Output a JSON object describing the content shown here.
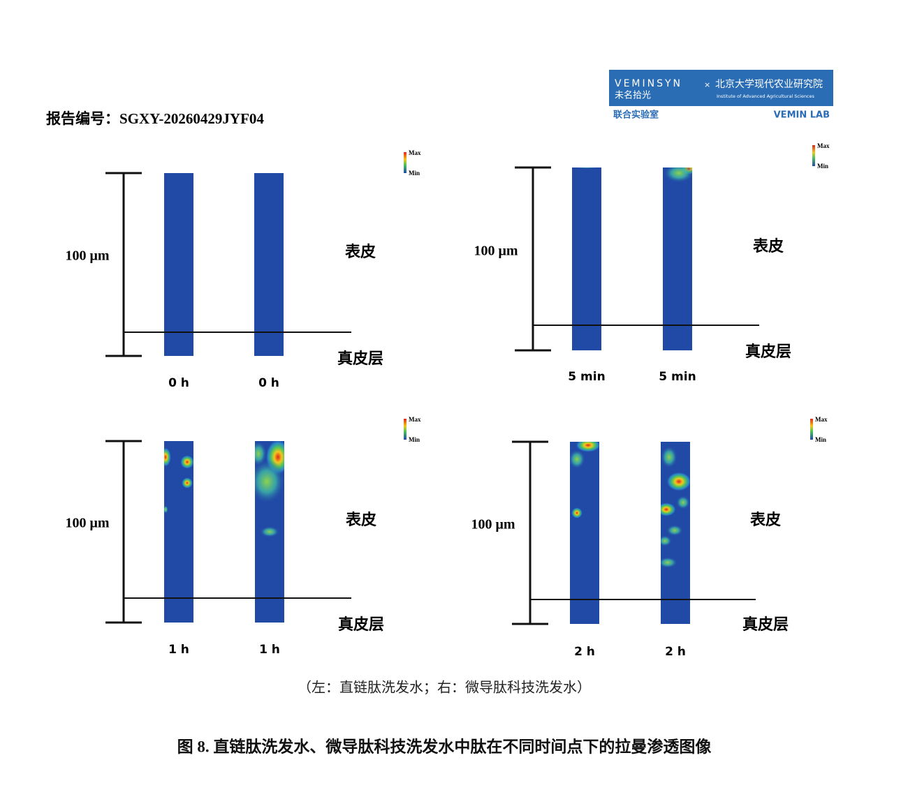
{
  "header": {
    "report_number": "报告编号：SGXY-20260429JYF04"
  },
  "logo": {
    "brand": "VEMINSYN",
    "brand_cn": "未名拾光",
    "separator": "×",
    "institute": "北京大学现代农业研究院",
    "institute_en": "Institute of Advanced Agricultural Sciences",
    "lab_cn": "联合实验室",
    "lab_en": "VEMIN LAB"
  },
  "panels": [
    {
      "scale_label": "100 μm",
      "upper_layer": "表皮",
      "lower_layer": "真皮层",
      "left_label": "0 h",
      "right_label": "0 h",
      "colorbar_max": "Max",
      "colorbar_min": "Min"
    },
    {
      "scale_label": "100 μm",
      "upper_layer": "表皮",
      "lower_layer": "真皮层",
      "left_label": "5 min",
      "right_label": "5 min",
      "colorbar_max": "Max",
      "colorbar_min": "Min"
    },
    {
      "scale_label": "100 μm",
      "upper_layer": "表皮",
      "lower_layer": "真皮层",
      "left_label": "1 h",
      "right_label": "1 h",
      "colorbar_max": "Max",
      "colorbar_min": "Min"
    },
    {
      "scale_label": "100 μm",
      "upper_layer": "表皮",
      "lower_layer": "真皮层",
      "left_label": "2 h",
      "right_label": "2 h",
      "colorbar_max": "Max",
      "colorbar_min": "Min"
    }
  ],
  "caption": "（左：直链肽洗发水；右：微导肽科技洗发水）",
  "figure_title": "图 8. 直链肽洗发水、微导肽科技洗发水中肽在不同时间点下的拉曼渗透图像"
}
